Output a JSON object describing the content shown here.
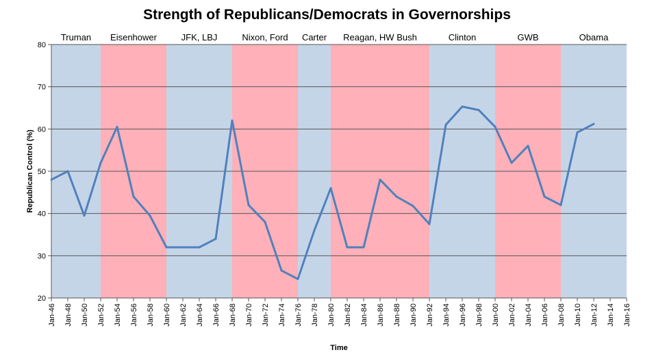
{
  "chart_data": {
    "type": "line",
    "title": "Strength of Republicans/Democrats in Governorships",
    "xlabel": "Time",
    "ylabel": "Republican Control (%)",
    "ylim": [
      20,
      80
    ],
    "yticks": [
      20,
      30,
      40,
      50,
      60,
      70,
      80
    ],
    "xlim": [
      1946,
      2016
    ],
    "xtick_labels": [
      "Jan-46",
      "Jan-48",
      "Jan-50",
      "Jan-52",
      "Jan-54",
      "Jan-56",
      "Jan-58",
      "Jan-60",
      "Jan-62",
      "Jan-64",
      "Jan-66",
      "Jan-68",
      "Jan-70",
      "Jan-72",
      "Jan-74",
      "Jan-76",
      "Jan-78",
      "Jan-80",
      "Jan-82",
      "Jan-84",
      "Jan-86",
      "Jan-88",
      "Jan-90",
      "Jan-92",
      "Jan-94",
      "Jan-96",
      "Jan-98",
      "Jan-00",
      "Jan-02",
      "Jan-04",
      "Jan-06",
      "Jan-08",
      "Jan-10",
      "Jan-12",
      "Jan-14",
      "Jan-16"
    ],
    "grid": "horizontal",
    "line_color": "#4F81BD",
    "eras": [
      {
        "label": "Truman",
        "start": 1946,
        "end": 1952,
        "party": "D"
      },
      {
        "label": "Eisenhower",
        "start": 1952,
        "end": 1960,
        "party": "R"
      },
      {
        "label": "JFK, LBJ",
        "start": 1960,
        "end": 1968,
        "party": "D"
      },
      {
        "label": "Nixon, Ford",
        "start": 1968,
        "end": 1976,
        "party": "R"
      },
      {
        "label": "Carter",
        "start": 1976,
        "end": 1980,
        "party": "D"
      },
      {
        "label": "Reagan, HW Bush",
        "start": 1980,
        "end": 1992,
        "party": "R"
      },
      {
        "label": "Clinton",
        "start": 1992,
        "end": 2000,
        "party": "D"
      },
      {
        "label": "GWB",
        "start": 2000,
        "end": 2008,
        "party": "R"
      },
      {
        "label": "Obama",
        "start": 2008,
        "end": 2016,
        "party": "D"
      }
    ],
    "era_colors": {
      "D": "#C5D5E8",
      "R": "#FFB0B8"
    },
    "series": [
      {
        "x": [
          1946,
          1948,
          1950,
          1952,
          1954,
          1956,
          1958,
          1960,
          1962,
          1964,
          1966,
          1968,
          1970,
          1972,
          1974,
          1976,
          1978,
          1980,
          1982,
          1984,
          1986,
          1988,
          1990,
          1992,
          1994,
          1996,
          1998,
          2000,
          2002,
          2004,
          2006,
          2008,
          2010,
          2012
        ],
        "values": [
          48,
          50,
          39.5,
          52,
          60.5,
          44,
          39.5,
          32,
          32,
          32,
          34,
          62,
          42,
          38,
          26.5,
          24.5,
          36,
          46,
          32,
          32,
          48,
          44,
          41.8,
          37.5,
          61,
          65.3,
          64.5,
          60.5,
          52,
          56,
          44,
          42,
          59.2,
          61.2
        ]
      }
    ]
  }
}
